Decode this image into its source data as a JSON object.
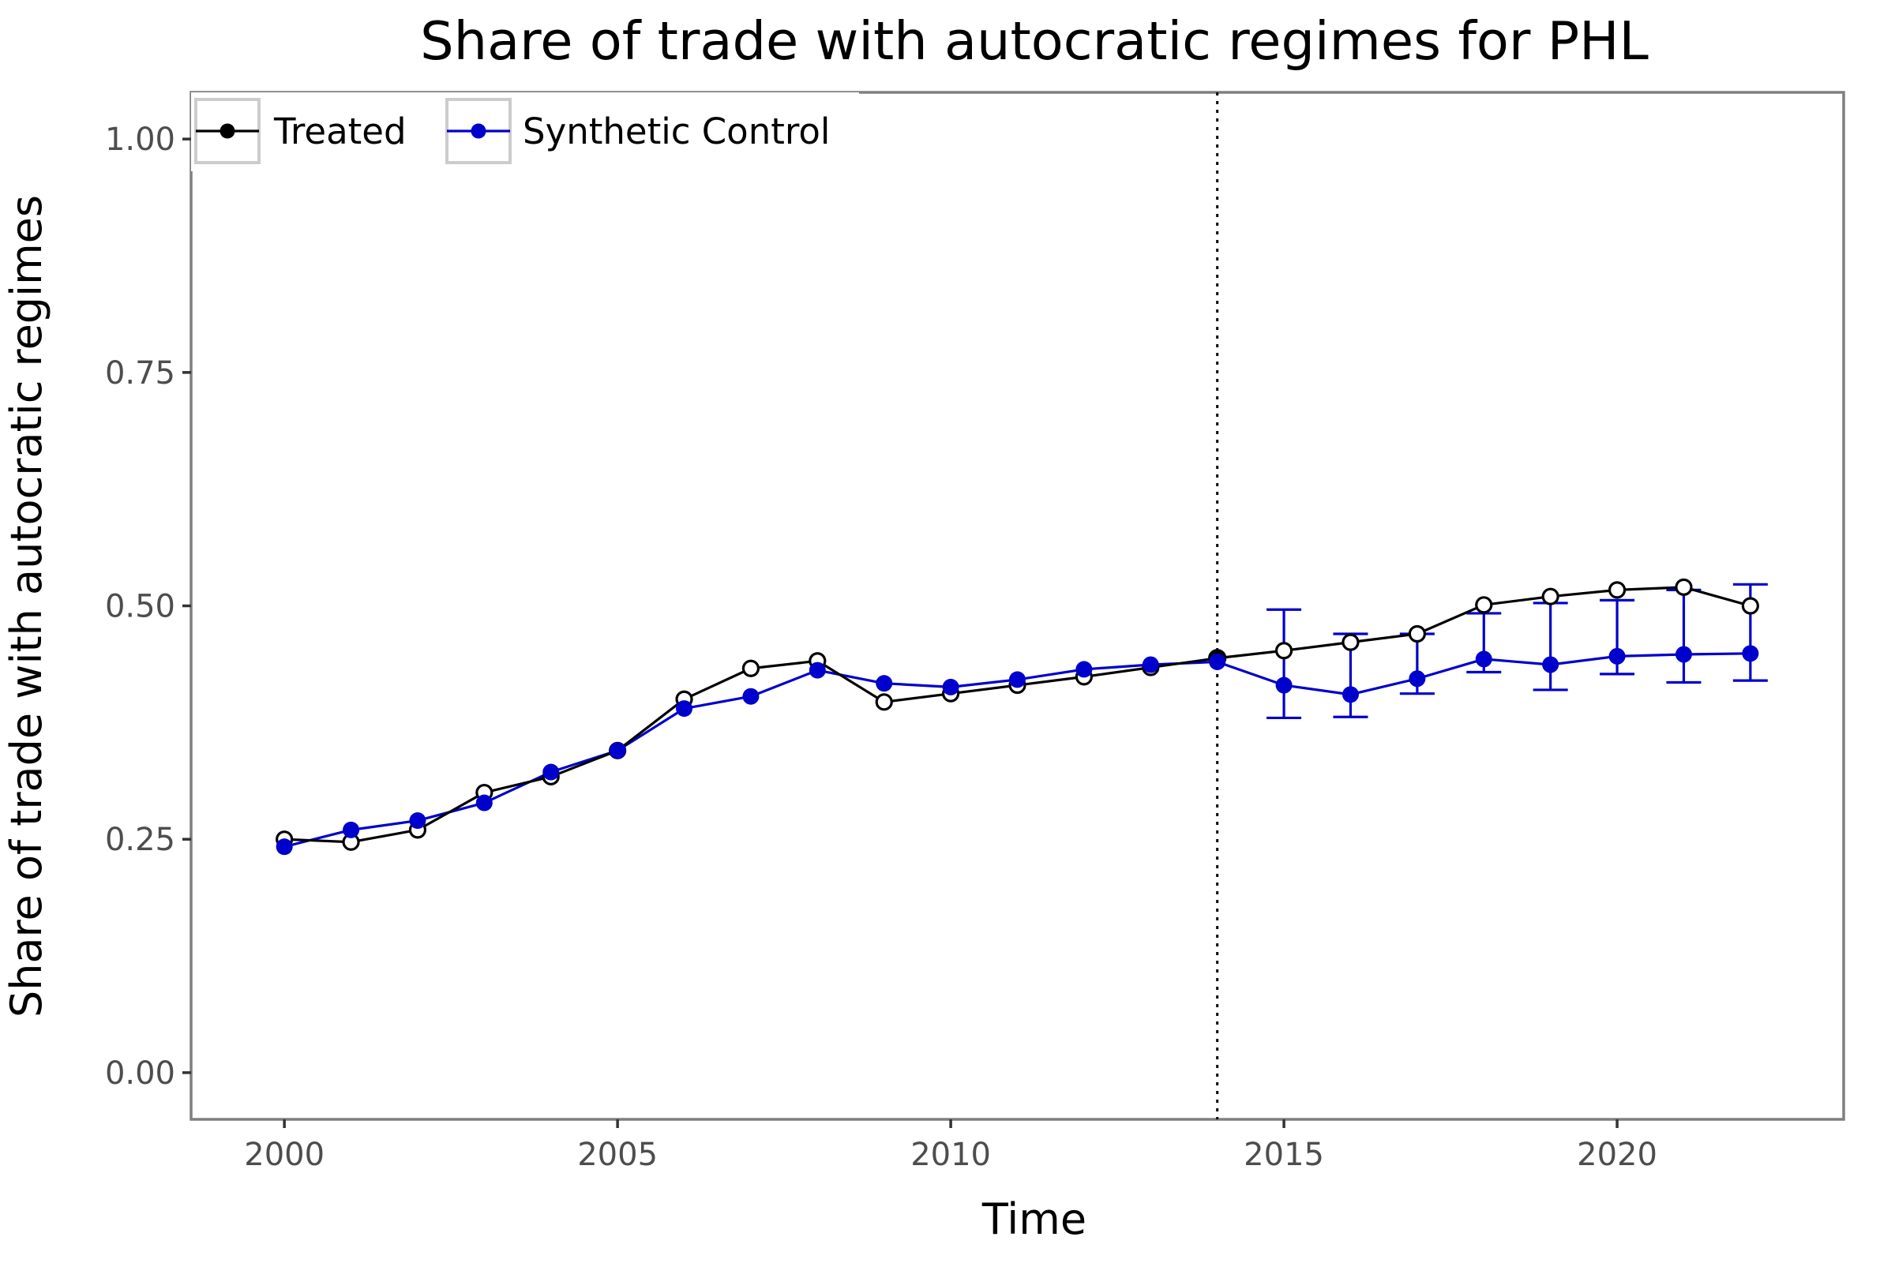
{
  "chart_data": {
    "type": "line",
    "title": "Share of trade with autocratic regimes for PHL",
    "xlabel": "Time",
    "ylabel": "Share of trade with autocratic regimes",
    "xlim": [
      1998.6,
      2023.4
    ],
    "ylim": [
      -0.05,
      1.05
    ],
    "x_ticks": [
      2000,
      2005,
      2010,
      2015,
      2020
    ],
    "y_ticks": [
      0.0,
      0.25,
      0.5,
      0.75,
      1.0
    ],
    "y_tick_labels": [
      "0.00",
      "0.25",
      "0.50",
      "0.75",
      "1.00"
    ],
    "treatment_year": 2014,
    "grid": false,
    "legend_position": "top-left",
    "x": [
      2000,
      2001,
      2002,
      2003,
      2004,
      2005,
      2006,
      2007,
      2008,
      2009,
      2010,
      2011,
      2012,
      2013,
      2014,
      2015,
      2016,
      2017,
      2018,
      2019,
      2020,
      2021,
      2022
    ],
    "series": [
      {
        "name": "Treated",
        "color": "#000000",
        "values": [
          0.25,
          0.247,
          0.26,
          0.3,
          0.317,
          0.345,
          0.4,
          0.433,
          0.441,
          0.397,
          0.406,
          0.415,
          0.424,
          0.434,
          0.444,
          0.452,
          0.461,
          0.47,
          0.501,
          0.51,
          0.517,
          0.52,
          0.5
        ]
      },
      {
        "name": "Synthetic Control",
        "color": "#0000cc",
        "values": [
          0.242,
          0.26,
          0.27,
          0.289,
          0.322,
          0.345,
          0.39,
          0.403,
          0.431,
          0.417,
          0.413,
          0.421,
          0.432,
          0.437,
          0.44,
          0.415,
          0.405,
          0.422,
          0.443,
          0.437,
          0.446,
          0.448,
          0.449
        ],
        "error_bars": [
          {
            "x": 2015,
            "low": 0.38,
            "high": 0.496
          },
          {
            "x": 2016,
            "low": 0.381,
            "high": 0.47
          },
          {
            "x": 2017,
            "low": 0.406,
            "high": 0.47
          },
          {
            "x": 2018,
            "low": 0.429,
            "high": 0.492
          },
          {
            "x": 2019,
            "low": 0.41,
            "high": 0.503
          },
          {
            "x": 2020,
            "low": 0.427,
            "high": 0.506
          },
          {
            "x": 2021,
            "low": 0.418,
            "high": 0.517
          },
          {
            "x": 2022,
            "low": 0.42,
            "high": 0.523
          }
        ]
      }
    ]
  }
}
